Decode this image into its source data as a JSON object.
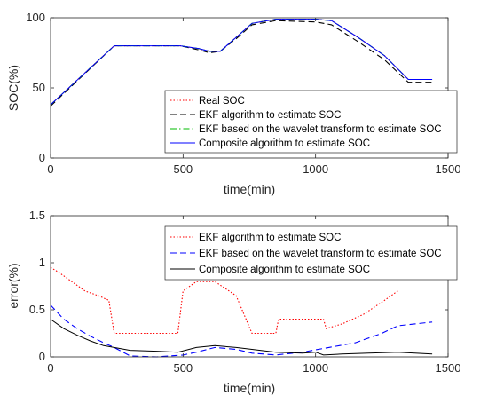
{
  "chart_data": [
    {
      "type": "line",
      "xlabel": "time(min)",
      "ylabel": "SOC(%)",
      "xlim": [
        0,
        1500
      ],
      "ylim": [
        0,
        100
      ],
      "xticks": [
        0,
        500,
        1000,
        1500
      ],
      "yticks": [
        0,
        50,
        100
      ],
      "legend_placement": "bottom-right",
      "series": [
        {
          "name": "Real SOC",
          "color": "#ff0000",
          "style": "dotted",
          "x": [
            0,
            240,
            490,
            560,
            600,
            640,
            700,
            760,
            850,
            1000,
            1060,
            1160,
            1260,
            1350,
            1440
          ],
          "y": [
            38,
            80,
            80,
            78,
            76,
            76,
            86,
            96,
            99,
            99,
            98,
            86,
            73,
            56,
            56
          ]
        },
        {
          "name": "EKF algorithm to estimate SOC",
          "color": "#000000",
          "style": "dashed",
          "x": [
            0,
            240,
            490,
            560,
            600,
            640,
            700,
            760,
            850,
            1000,
            1060,
            1160,
            1260,
            1350,
            1440
          ],
          "y": [
            37,
            80,
            80,
            77,
            75,
            76,
            85,
            95,
            98,
            97,
            95,
            83,
            70,
            54,
            54
          ]
        },
        {
          "name": "EKF based on the wavelet transform to estimate SOC",
          "color": "#00bb00",
          "style": "dashdot",
          "x": [
            0,
            240,
            490,
            560,
            600,
            640,
            700,
            760,
            850,
            1000,
            1060,
            1160,
            1260,
            1350,
            1440
          ],
          "y": [
            38,
            80,
            80,
            78,
            76,
            76,
            86,
            96,
            99,
            99,
            98,
            86,
            73,
            56,
            56
          ]
        },
        {
          "name": "Composite algorithm to estimate SOC",
          "color": "#0000ff",
          "style": "solid",
          "x": [
            0,
            240,
            490,
            560,
            600,
            640,
            700,
            760,
            850,
            1000,
            1060,
            1160,
            1260,
            1350,
            1440
          ],
          "y": [
            38,
            80,
            80,
            78,
            76,
            76,
            86,
            96,
            99,
            99,
            98,
            86,
            73,
            56,
            56
          ]
        }
      ]
    },
    {
      "type": "line",
      "xlabel": "time(min)",
      "ylabel": "error(%)",
      "xlim": [
        0,
        1500
      ],
      "ylim": [
        0,
        1.5
      ],
      "xticks": [
        0,
        500,
        1000,
        1500
      ],
      "yticks": [
        0,
        0.5,
        1,
        1.5
      ],
      "legend_placement": "top-right",
      "series": [
        {
          "name": "EKF algorithm to estimate SOC",
          "color": "#ff0000",
          "style": "dotted",
          "x": [
            0,
            30,
            80,
            130,
            180,
            220,
            240,
            480,
            500,
            550,
            620,
            700,
            760,
            850,
            860,
            1030,
            1040,
            1100,
            1180,
            1260,
            1310
          ],
          "y": [
            0.95,
            0.9,
            0.8,
            0.7,
            0.65,
            0.6,
            0.25,
            0.25,
            0.7,
            0.8,
            0.8,
            0.65,
            0.25,
            0.25,
            0.4,
            0.4,
            0.3,
            0.35,
            0.45,
            0.6,
            0.7
          ]
        },
        {
          "name": "EKF based on the wavelet transform to estimate SOC",
          "color": "#0000ff",
          "style": "dashed",
          "x": [
            0,
            50,
            100,
            150,
            200,
            240,
            300,
            400,
            500,
            550,
            620,
            700,
            760,
            850,
            950,
            1050,
            1150,
            1250,
            1310,
            1440
          ],
          "y": [
            0.55,
            0.4,
            0.3,
            0.22,
            0.15,
            0.1,
            0.01,
            0.0,
            0.02,
            0.05,
            0.1,
            0.08,
            0.04,
            0.02,
            0.05,
            0.1,
            0.15,
            0.25,
            0.33,
            0.37
          ]
        },
        {
          "name": "Composite algorithm to estimate SOC",
          "color": "#000000",
          "style": "solid",
          "x": [
            0,
            50,
            100,
            150,
            200,
            240,
            300,
            400,
            480,
            550,
            620,
            700,
            760,
            850,
            950,
            1000,
            1030,
            1100,
            1200,
            1310,
            1440
          ],
          "y": [
            0.4,
            0.3,
            0.23,
            0.17,
            0.12,
            0.1,
            0.07,
            0.06,
            0.05,
            0.1,
            0.12,
            0.1,
            0.08,
            0.05,
            0.04,
            0.05,
            0.02,
            0.03,
            0.04,
            0.05,
            0.03
          ]
        }
      ]
    }
  ]
}
